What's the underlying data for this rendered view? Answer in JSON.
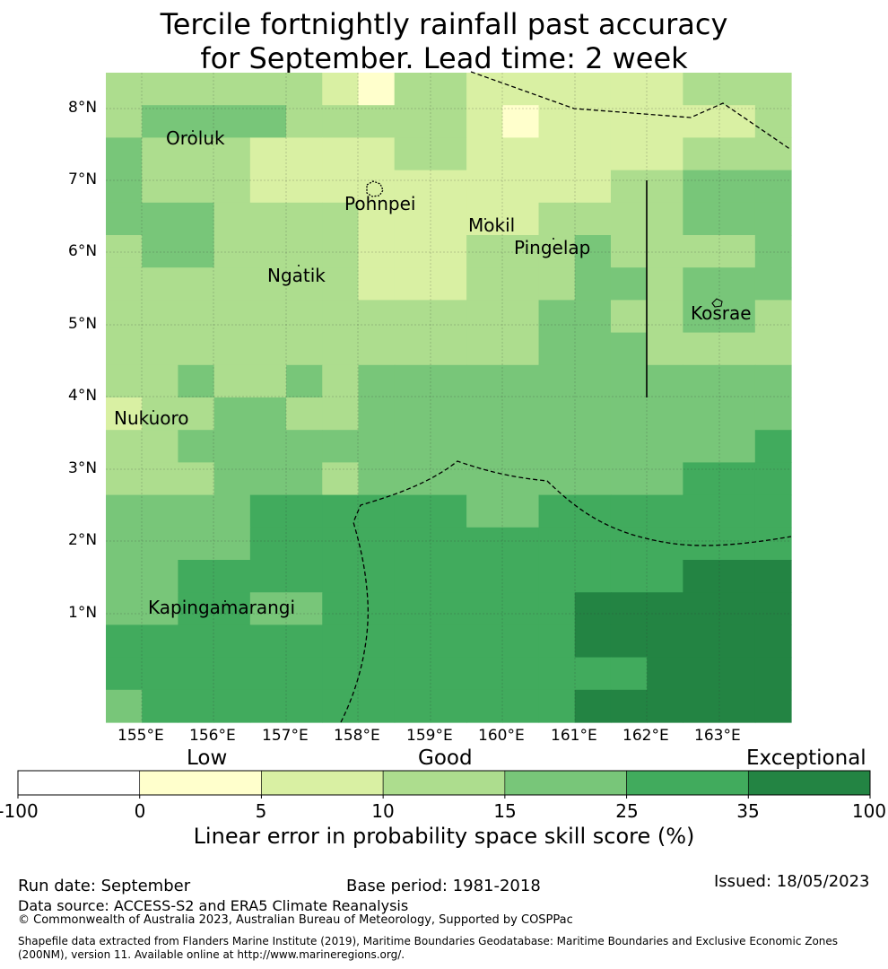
{
  "title": {
    "line1": "Tercile fortnightly rainfall past accuracy",
    "line2": "for September. Lead time: 2 week"
  },
  "map": {
    "lat_ticks": [
      "8°N",
      "7°N",
      "6°N",
      "5°N",
      "4°N",
      "3°N",
      "2°N",
      "1°N"
    ],
    "lon_ticks": [
      "155°E",
      "156°E",
      "157°E",
      "158°E",
      "159°E",
      "160°E",
      "161°E",
      "162°E",
      "163°E"
    ],
    "places": [
      {
        "name": "Oroluk"
      },
      {
        "name": "Pohnpei"
      },
      {
        "name": "Mokil"
      },
      {
        "name": "Pingelap"
      },
      {
        "name": "Ngatik"
      },
      {
        "name": "Kosrae"
      },
      {
        "name": "Nukuoro"
      },
      {
        "name": "Kapingamarangi"
      }
    ],
    "colors": [
      "#ffffff",
      "#ffffcc",
      "#d9f0a3",
      "#addd8e",
      "#78c679",
      "#41ab5d",
      "#238443"
    ],
    "grid": [
      "3333332133222222333",
      "3444433333212222223",
      "4333222233222222333",
      "4333222222222233444",
      "4443333222223333444",
      "3443333222333433334",
      "3333333222333443444",
      "3333333333334433443",
      "3333333333334443333",
      "3343343444444444444",
      "2334433444444444444",
      "3344444444444444445",
      "3334443444444444555",
      "4444555555445555555",
      "4444555555555555555",
      "4455555555555555666",
      "4455445555555666666",
      "5555555555555666666",
      "5555555555555556666",
      "4555555555555666666"
    ]
  },
  "colorbar": {
    "categories": {
      "low": "Low",
      "good": "Good",
      "exceptional": "Exceptional"
    },
    "ticks": [
      "-100",
      "0",
      "5",
      "10",
      "15",
      "25",
      "35",
      "100"
    ],
    "label": "Linear error in probability space skill score (%)"
  },
  "footer": {
    "run_date": "Run date: September",
    "base_period": "Base period: 1981-2018",
    "issued": "Issued: 18/05/2023",
    "data_source": "Data source: ACCESS-S2 and ERA5 Climate Reanalysis",
    "copyright": "© Commonwealth of Australia 2023, Australian Bureau of Meteorology, Supported by COSPPac",
    "shapefile_line1": "Shapefile data extracted from Flanders Marine Institute (2019), Maritime Boundaries Geodatabase: Maritime Boundaries and Exclusive Economic Zones",
    "shapefile_line2": "(200NM), version 11. Available online at http://www.marineregions.org/."
  }
}
